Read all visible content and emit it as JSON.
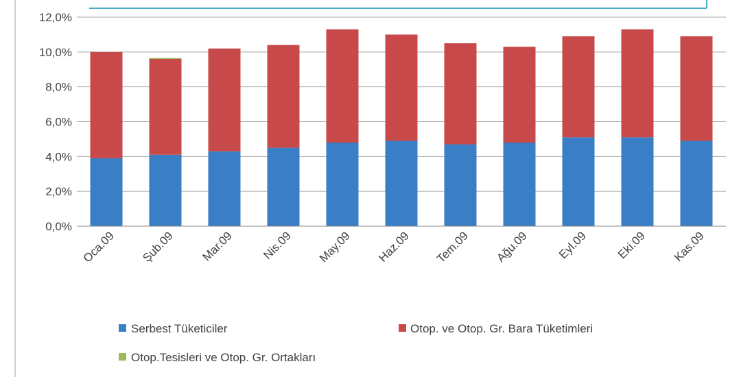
{
  "chart_data": {
    "type": "bar",
    "stacked": true,
    "categories": [
      "Oca.09",
      "Şub.09",
      "Mar.09",
      "Nis.09",
      "May.09",
      "Haz.09",
      "Tem.09",
      "Ağu.09",
      "Eyl.09",
      "Eki.09",
      "Kas.09"
    ],
    "series": [
      {
        "name": "Serbest Tüketiciler",
        "color": "#3a7fc5",
        "values": [
          3.9,
          4.1,
          4.3,
          4.5,
          4.8,
          4.9,
          4.7,
          4.8,
          5.1,
          5.1,
          4.9
        ]
      },
      {
        "name": "Otop. ve Otop. Gr. Bara Tüketimleri",
        "color": "#c8494a",
        "values": [
          6.1,
          5.5,
          5.9,
          5.9,
          6.5,
          6.1,
          5.8,
          5.5,
          5.8,
          6.2,
          6.0
        ]
      },
      {
        "name": "Otop.Tesisleri ve Otop. Gr. Ortakları",
        "color": "#9bbb59",
        "values": [
          0.0,
          0.05,
          0.0,
          0.0,
          0.0,
          0.0,
          0.0,
          0.0,
          0.0,
          0.0,
          0.0
        ]
      }
    ],
    "y_ticks": [
      "0,0%",
      "2,0%",
      "4,0%",
      "6,0%",
      "8,0%",
      "10,0%",
      "12,0%"
    ],
    "ylim": [
      0,
      12
    ],
    "grid": true,
    "legend_position": "bottom"
  }
}
